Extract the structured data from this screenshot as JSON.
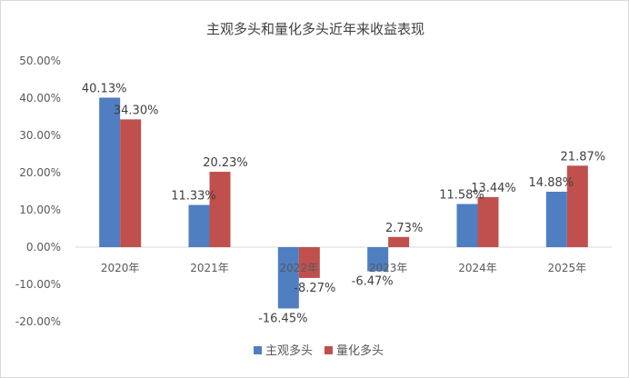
{
  "chart_data": {
    "type": "bar",
    "title": "主观多头和量化多头近年来收益表现",
    "categories": [
      "2020年",
      "2021年",
      "2022年",
      "2023年",
      "2024年",
      "2025年"
    ],
    "series": [
      {
        "name": "主观多头",
        "color": "#4f7ec1",
        "values": [
          40.13,
          11.33,
          -16.45,
          -6.47,
          11.58,
          14.88
        ],
        "labels": [
          "40.13%",
          "11.33%",
          "-16.45%",
          "-6.47%",
          "11.58%",
          "14.88%"
        ]
      },
      {
        "name": "量化多头",
        "color": "#c0504d",
        "values": [
          34.3,
          20.23,
          -8.27,
          2.73,
          13.44,
          21.87
        ],
        "labels": [
          "34.30%",
          "20.23%",
          "-8.27%",
          "2.73%",
          "13.44%",
          "21.87%"
        ]
      }
    ],
    "yticks": [
      50,
      40,
      30,
      20,
      10,
      0,
      -10,
      -20
    ],
    "ytick_labels": [
      "50.00%",
      "40.00%",
      "30.00%",
      "20.00%",
      "10.00%",
      "0.00%",
      "-10.00%",
      "-20.00%"
    ],
    "ylim": [
      -20,
      50
    ],
    "grid": false,
    "legend_position": "bottom"
  }
}
